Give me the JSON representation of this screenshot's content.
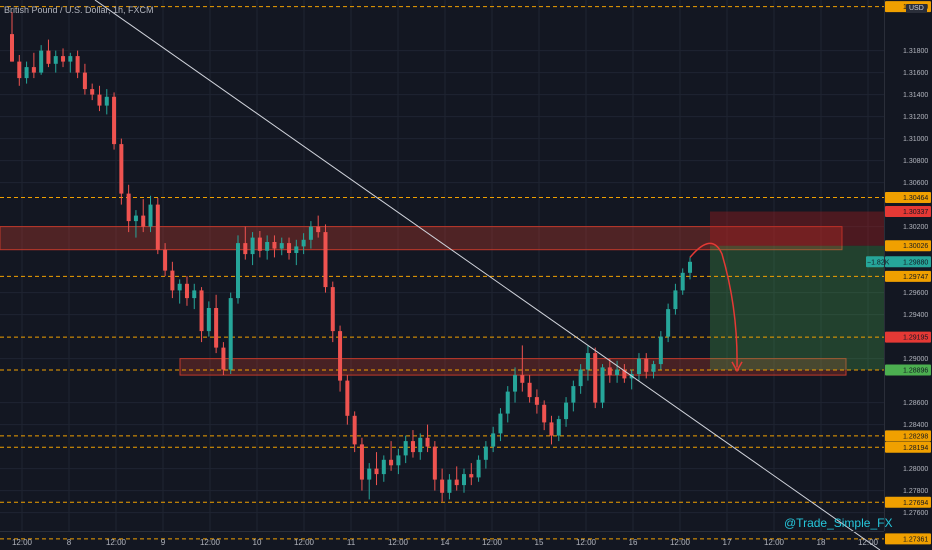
{
  "header": {
    "title": "British Pound / U.S. Dollar, 1h, FXCM",
    "currency": "USD"
  },
  "watermark": "@Trade_Simple_FX",
  "colors": {
    "background": "#131722",
    "grid": "#1f2432",
    "up": "#26a69a",
    "down": "#ef5350",
    "level_line": "#f0a000",
    "trendline": "#d1d4dc",
    "zone": "#c0392b",
    "target": "#4caf50",
    "stop": "#b71c1c",
    "arrow": "#e53935",
    "axis_text": "#b2b5be"
  },
  "chart_data": {
    "type": "candlestick",
    "symbol": "GBPUSD",
    "timeframe": "1h",
    "ylim": [
      1.2726,
      1.3226
    ],
    "x_ticks": [
      "12:00",
      "8",
      "12:00",
      "9",
      "12:00",
      "10",
      "12:00",
      "11",
      "12:00",
      "14",
      "12:00",
      "15",
      "12:00",
      "16",
      "12:00",
      "17",
      "12:00",
      "18",
      "12:00"
    ],
    "y_ticks": [
      "1.31800",
      "1.31600",
      "1.31400",
      "1.31200",
      "1.31000",
      "1.30800",
      "1.30600",
      "1.30200",
      "1.29600",
      "1.29400",
      "1.29000",
      "1.28600",
      "1.28400",
      "1.28000",
      "1.27800",
      "1.27600"
    ],
    "horizontal_levels": [
      "1.30464",
      "1.29747",
      "1.29195",
      "1.28896",
      "1.28298",
      "1.28194",
      "1.27694",
      "1.27361"
    ],
    "dashed_only_levels": [
      "1.32200"
    ],
    "price_labels": [
      {
        "value": "1.32200",
        "color": "#f0a000"
      },
      {
        "value": "1.30464",
        "color": "#f0a000"
      },
      {
        "value": "1.30337",
        "color": "#e53935"
      },
      {
        "value": "1.30026",
        "color": "#f0a000"
      },
      {
        "value": "1.29880",
        "color": "#26a69a",
        "badge": "−1.82K"
      },
      {
        "value": "1.29747",
        "color": "#f0a000"
      },
      {
        "value": "1.29195",
        "color": "#e53935"
      },
      {
        "value": "1.28896",
        "color": "#4caf50"
      },
      {
        "value": "1.28298",
        "color": "#f0a000"
      },
      {
        "value": "1.28194",
        "color": "#f0a000"
      },
      {
        "value": "1.27694",
        "color": "#f0a000"
      },
      {
        "value": "1.27361",
        "color": "#f0a000"
      }
    ],
    "resistance_zone": [
      1.2999,
      1.302
    ],
    "support_zone": [
      1.2885,
      1.29
    ],
    "short_position": {
      "entry": 1.30026,
      "stop": 1.30337,
      "target": 1.28896
    },
    "candles": [
      {
        "o": 1.3195,
        "h": 1.3215,
        "l": 1.317,
        "c": 1.317
      },
      {
        "o": 1.317,
        "h": 1.3176,
        "l": 1.3148,
        "c": 1.3155
      },
      {
        "o": 1.3155,
        "h": 1.317,
        "l": 1.315,
        "c": 1.3165
      },
      {
        "o": 1.3165,
        "h": 1.3178,
        "l": 1.3155,
        "c": 1.316
      },
      {
        "o": 1.316,
        "h": 1.3185,
        "l": 1.3158,
        "c": 1.318
      },
      {
        "o": 1.318,
        "h": 1.319,
        "l": 1.3165,
        "c": 1.3168
      },
      {
        "o": 1.3168,
        "h": 1.318,
        "l": 1.316,
        "c": 1.3175
      },
      {
        "o": 1.3175,
        "h": 1.3182,
        "l": 1.3165,
        "c": 1.317
      },
      {
        "o": 1.317,
        "h": 1.3178,
        "l": 1.316,
        "c": 1.3175
      },
      {
        "o": 1.3175,
        "h": 1.318,
        "l": 1.3155,
        "c": 1.316
      },
      {
        "o": 1.316,
        "h": 1.3168,
        "l": 1.314,
        "c": 1.3145
      },
      {
        "o": 1.3145,
        "h": 1.315,
        "l": 1.3135,
        "c": 1.314
      },
      {
        "o": 1.314,
        "h": 1.3148,
        "l": 1.3125,
        "c": 1.313
      },
      {
        "o": 1.313,
        "h": 1.3145,
        "l": 1.3122,
        "c": 1.3138
      },
      {
        "o": 1.3138,
        "h": 1.3142,
        "l": 1.309,
        "c": 1.3095
      },
      {
        "o": 1.3095,
        "h": 1.31,
        "l": 1.304,
        "c": 1.305
      },
      {
        "o": 1.305,
        "h": 1.3058,
        "l": 1.3015,
        "c": 1.3025
      },
      {
        "o": 1.3025,
        "h": 1.3035,
        "l": 1.301,
        "c": 1.303
      },
      {
        "o": 1.303,
        "h": 1.3045,
        "l": 1.3015,
        "c": 1.302
      },
      {
        "o": 1.302,
        "h": 1.3048,
        "l": 1.3015,
        "c": 1.304
      },
      {
        "o": 1.304,
        "h": 1.3046,
        "l": 1.2995,
        "c": 1.2999
      },
      {
        "o": 1.2999,
        "h": 1.3005,
        "l": 1.2975,
        "c": 1.298
      },
      {
        "o": 1.298,
        "h": 1.2988,
        "l": 1.2955,
        "c": 1.2962
      },
      {
        "o": 1.2962,
        "h": 1.2972,
        "l": 1.295,
        "c": 1.2968
      },
      {
        "o": 1.2968,
        "h": 1.2975,
        "l": 1.2948,
        "c": 1.2955
      },
      {
        "o": 1.2955,
        "h": 1.2968,
        "l": 1.2945,
        "c": 1.2962
      },
      {
        "o": 1.2962,
        "h": 1.2965,
        "l": 1.2915,
        "c": 1.2925
      },
      {
        "o": 1.2925,
        "h": 1.2952,
        "l": 1.292,
        "c": 1.2946
      },
      {
        "o": 1.2946,
        "h": 1.2958,
        "l": 1.2905,
        "c": 1.291
      },
      {
        "o": 1.291,
        "h": 1.2915,
        "l": 1.2885,
        "c": 1.289
      },
      {
        "o": 1.289,
        "h": 1.296,
        "l": 1.2886,
        "c": 1.2955
      },
      {
        "o": 1.2955,
        "h": 1.3012,
        "l": 1.295,
        "c": 1.3005
      },
      {
        "o": 1.3005,
        "h": 1.302,
        "l": 1.299,
        "c": 1.2995
      },
      {
        "o": 1.2995,
        "h": 1.3015,
        "l": 1.2985,
        "c": 1.301
      },
      {
        "o": 1.301,
        "h": 1.3016,
        "l": 1.2992,
        "c": 1.2998
      },
      {
        "o": 1.2998,
        "h": 1.3012,
        "l": 1.299,
        "c": 1.3006
      },
      {
        "o": 1.3006,
        "h": 1.3012,
        "l": 1.2992,
        "c": 1.3
      },
      {
        "o": 1.3,
        "h": 1.301,
        "l": 1.2994,
        "c": 1.3005
      },
      {
        "o": 1.3005,
        "h": 1.301,
        "l": 1.299,
        "c": 1.2996
      },
      {
        "o": 1.2996,
        "h": 1.3008,
        "l": 1.2985,
        "c": 1.3002
      },
      {
        "o": 1.3002,
        "h": 1.3014,
        "l": 1.2995,
        "c": 1.3008
      },
      {
        "o": 1.3008,
        "h": 1.3025,
        "l": 1.3,
        "c": 1.302
      },
      {
        "o": 1.302,
        "h": 1.303,
        "l": 1.301,
        "c": 1.3015
      },
      {
        "o": 1.3015,
        "h": 1.3022,
        "l": 1.296,
        "c": 1.2965
      },
      {
        "o": 1.2965,
        "h": 1.297,
        "l": 1.2915,
        "c": 1.2925
      },
      {
        "o": 1.2925,
        "h": 1.293,
        "l": 1.287,
        "c": 1.288
      },
      {
        "o": 1.288,
        "h": 1.2885,
        "l": 1.284,
        "c": 1.2848
      },
      {
        "o": 1.2848,
        "h": 1.2852,
        "l": 1.2815,
        "c": 1.2822
      },
      {
        "o": 1.2822,
        "h": 1.2828,
        "l": 1.278,
        "c": 1.279
      },
      {
        "o": 1.279,
        "h": 1.2805,
        "l": 1.2772,
        "c": 1.28
      },
      {
        "o": 1.28,
        "h": 1.2815,
        "l": 1.2785,
        "c": 1.2795
      },
      {
        "o": 1.2795,
        "h": 1.2812,
        "l": 1.2788,
        "c": 1.2808
      },
      {
        "o": 1.2808,
        "h": 1.2825,
        "l": 1.2798,
        "c": 1.2803
      },
      {
        "o": 1.2803,
        "h": 1.2818,
        "l": 1.2795,
        "c": 1.2812
      },
      {
        "o": 1.2812,
        "h": 1.283,
        "l": 1.2805,
        "c": 1.2825
      },
      {
        "o": 1.2825,
        "h": 1.2835,
        "l": 1.281,
        "c": 1.2815
      },
      {
        "o": 1.2815,
        "h": 1.2832,
        "l": 1.2808,
        "c": 1.2828
      },
      {
        "o": 1.2828,
        "h": 1.284,
        "l": 1.2815,
        "c": 1.282
      },
      {
        "o": 1.282,
        "h": 1.2825,
        "l": 1.278,
        "c": 1.279
      },
      {
        "o": 1.279,
        "h": 1.28,
        "l": 1.277,
        "c": 1.2778
      },
      {
        "o": 1.2778,
        "h": 1.2795,
        "l": 1.2772,
        "c": 1.279
      },
      {
        "o": 1.279,
        "h": 1.2802,
        "l": 1.278,
        "c": 1.2785
      },
      {
        "o": 1.2785,
        "h": 1.28,
        "l": 1.2778,
        "c": 1.2795
      },
      {
        "o": 1.2795,
        "h": 1.2805,
        "l": 1.2785,
        "c": 1.2792
      },
      {
        "o": 1.2792,
        "h": 1.2812,
        "l": 1.2788,
        "c": 1.2808
      },
      {
        "o": 1.2808,
        "h": 1.2825,
        "l": 1.28,
        "c": 1.282
      },
      {
        "o": 1.282,
        "h": 1.2838,
        "l": 1.2815,
        "c": 1.2832
      },
      {
        "o": 1.2832,
        "h": 1.2855,
        "l": 1.2825,
        "c": 1.285
      },
      {
        "o": 1.285,
        "h": 1.2875,
        "l": 1.2842,
        "c": 1.287
      },
      {
        "o": 1.287,
        "h": 1.2892,
        "l": 1.286,
        "c": 1.2885
      },
      {
        "o": 1.2885,
        "h": 1.2912,
        "l": 1.287,
        "c": 1.2878
      },
      {
        "o": 1.2878,
        "h": 1.2885,
        "l": 1.286,
        "c": 1.2865
      },
      {
        "o": 1.2865,
        "h": 1.2872,
        "l": 1.285,
        "c": 1.2858
      },
      {
        "o": 1.2858,
        "h": 1.2862,
        "l": 1.2835,
        "c": 1.2842
      },
      {
        "o": 1.2842,
        "h": 1.2848,
        "l": 1.2822,
        "c": 1.283
      },
      {
        "o": 1.283,
        "h": 1.2848,
        "l": 1.2825,
        "c": 1.2845
      },
      {
        "o": 1.2845,
        "h": 1.2865,
        "l": 1.2838,
        "c": 1.286
      },
      {
        "o": 1.286,
        "h": 1.288,
        "l": 1.2852,
        "c": 1.2875
      },
      {
        "o": 1.2875,
        "h": 1.2895,
        "l": 1.2868,
        "c": 1.289
      },
      {
        "o": 1.289,
        "h": 1.2912,
        "l": 1.288,
        "c": 1.2905
      },
      {
        "o": 1.2905,
        "h": 1.291,
        "l": 1.2855,
        "c": 1.286
      },
      {
        "o": 1.286,
        "h": 1.2895,
        "l": 1.2855,
        "c": 1.2892
      },
      {
        "o": 1.2892,
        "h": 1.29,
        "l": 1.2878,
        "c": 1.2885
      },
      {
        "o": 1.2885,
        "h": 1.2898,
        "l": 1.2878,
        "c": 1.289
      },
      {
        "o": 1.289,
        "h": 1.2895,
        "l": 1.2878,
        "c": 1.2882
      },
      {
        "o": 1.2882,
        "h": 1.289,
        "l": 1.2872,
        "c": 1.2886
      },
      {
        "o": 1.2886,
        "h": 1.2905,
        "l": 1.288,
        "c": 1.29
      },
      {
        "o": 1.29,
        "h": 1.2905,
        "l": 1.2882,
        "c": 1.2888
      },
      {
        "o": 1.2888,
        "h": 1.2898,
        "l": 1.2882,
        "c": 1.2895
      },
      {
        "o": 1.2895,
        "h": 1.2925,
        "l": 1.289,
        "c": 1.292
      },
      {
        "o": 1.292,
        "h": 1.295,
        "l": 1.2915,
        "c": 1.2945
      },
      {
        "o": 1.2945,
        "h": 1.2968,
        "l": 1.294,
        "c": 1.2962
      },
      {
        "o": 1.2962,
        "h": 1.2982,
        "l": 1.2958,
        "c": 1.2978
      },
      {
        "o": 1.2978,
        "h": 1.2992,
        "l": 1.2972,
        "c": 1.2988
      }
    ],
    "title": "British Pound / U.S. Dollar, 1h, FXCM"
  }
}
